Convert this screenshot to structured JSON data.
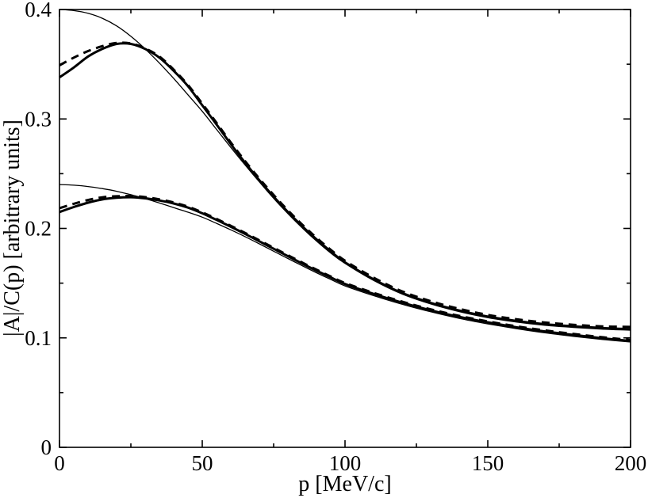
{
  "chart_data": {
    "type": "line",
    "title": "",
    "xlabel": "p [MeV/c]",
    "ylabel": "|A|/C(p) [arbitrary units]",
    "xlim": [
      0,
      200
    ],
    "ylim": [
      0,
      0.4
    ],
    "grid": false,
    "legend": "none",
    "axis_color": "#000000",
    "curve_color": "#000000",
    "xticks": {
      "major": [
        0,
        50,
        100,
        150,
        200
      ],
      "labels": [
        "0",
        "50",
        "100",
        "150",
        "200"
      ],
      "minor": [
        25,
        75,
        125,
        175
      ]
    },
    "yticks": {
      "major": [
        0,
        0.1,
        0.2,
        0.3,
        0.4
      ],
      "labels": [
        "0",
        "0.1",
        "0.2",
        "0.3",
        "0.4"
      ],
      "minor": [
        0.05,
        0.15,
        0.25,
        0.35
      ]
    },
    "x": [
      0,
      5,
      10,
      15,
      20,
      25,
      30,
      35,
      40,
      45,
      50,
      55,
      60,
      65,
      70,
      75,
      80,
      85,
      90,
      95,
      100,
      110,
      120,
      130,
      140,
      150,
      160,
      170,
      180,
      190,
      200
    ],
    "series": [
      {
        "name": "upper-thin-solid",
        "style": "thin-solid",
        "values": [
          0.4,
          0.399,
          0.3965,
          0.392,
          0.385,
          0.3755,
          0.364,
          0.351,
          0.337,
          0.322,
          0.307,
          0.2905,
          0.274,
          0.258,
          0.2425,
          0.2275,
          0.2135,
          0.2005,
          0.1885,
          0.1775,
          0.168,
          0.1525,
          0.14,
          0.131,
          0.124,
          0.1185,
          0.1145,
          0.1115,
          0.1095,
          0.108,
          0.107
        ]
      },
      {
        "name": "lower-thin-solid",
        "style": "thin-solid",
        "values": [
          0.24,
          0.2395,
          0.2383,
          0.2364,
          0.2339,
          0.2308,
          0.2272,
          0.2232,
          0.219,
          0.2148,
          0.2103,
          0.2046,
          0.1987,
          0.1925,
          0.1859,
          0.1792,
          0.1725,
          0.1659,
          0.1595,
          0.1534,
          0.1475,
          0.1386,
          0.1307,
          0.1238,
          0.1178,
          0.1128,
          0.1084,
          0.1046,
          0.1014,
          0.0986,
          0.0962
        ]
      },
      {
        "name": "upper-thick-solid",
        "style": "thick-solid",
        "values": [
          0.338,
          0.347,
          0.357,
          0.364,
          0.3685,
          0.3685,
          0.364,
          0.356,
          0.344,
          0.33,
          0.3125,
          0.295,
          0.277,
          0.26,
          0.244,
          0.229,
          0.215,
          0.202,
          0.19,
          0.179,
          0.169,
          0.1535,
          0.141,
          0.132,
          0.125,
          0.1195,
          0.1155,
          0.1125,
          0.1105,
          0.109,
          0.108
        ]
      },
      {
        "name": "lower-thick-solid",
        "style": "thick-solid",
        "values": [
          0.215,
          0.2195,
          0.2235,
          0.2265,
          0.228,
          0.2285,
          0.2275,
          0.2255,
          0.2228,
          0.219,
          0.2138,
          0.2078,
          0.2015,
          0.195,
          0.1882,
          0.1814,
          0.1746,
          0.1679,
          0.1614,
          0.1552,
          0.1492,
          0.1402,
          0.1322,
          0.1252,
          0.1192,
          0.1142,
          0.1097,
          0.1059,
          0.1027,
          0.0997,
          0.0972
        ]
      },
      {
        "name": "upper-thick-dashed",
        "style": "thick-dashed",
        "values": [
          0.349,
          0.356,
          0.362,
          0.3665,
          0.3695,
          0.369,
          0.3645,
          0.357,
          0.345,
          0.331,
          0.314,
          0.2965,
          0.2785,
          0.2615,
          0.2455,
          0.2305,
          0.2165,
          0.2035,
          0.1915,
          0.1805,
          0.1705,
          0.155,
          0.1425,
          0.1335,
          0.1265,
          0.121,
          0.117,
          0.114,
          0.112,
          0.1105,
          0.11
        ]
      },
      {
        "name": "lower-thick-dashed",
        "style": "thick-dashed",
        "values": [
          0.2185,
          0.2225,
          0.226,
          0.2284,
          0.2294,
          0.2296,
          0.2286,
          0.2265,
          0.2237,
          0.2199,
          0.2147,
          0.2087,
          0.2024,
          0.1959,
          0.1891,
          0.1823,
          0.1755,
          0.1688,
          0.1623,
          0.1561,
          0.1501,
          0.1411,
          0.1331,
          0.1261,
          0.1201,
          0.1151,
          0.1106,
          0.1068,
          0.1036,
          0.1006,
          0.0981
        ]
      }
    ]
  }
}
